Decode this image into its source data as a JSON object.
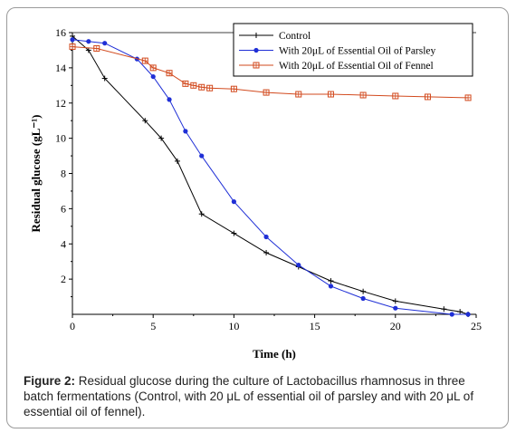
{
  "chart_data": {
    "type": "line",
    "xlabel": "Time (h)",
    "ylabel": "Residual glucose (gL⁻¹)",
    "xlim": [
      0,
      25
    ],
    "ylim": [
      0,
      16
    ],
    "xticks": [
      "0",
      "5",
      "10",
      "15",
      "20",
      "25"
    ],
    "yticks": [
      "2",
      "4",
      "6",
      "8",
      "10",
      "12",
      "14",
      "16"
    ],
    "grid": false,
    "legend_position": "top-right",
    "series": [
      {
        "name": "Control",
        "color": "#000000",
        "marker": "plus",
        "x": [
          0,
          1,
          2,
          4.5,
          5.5,
          6.5,
          8,
          10,
          12,
          14,
          16,
          18,
          20,
          23,
          24,
          24.5
        ],
        "y": [
          15.8,
          15.0,
          13.4,
          11.0,
          10.0,
          8.7,
          5.7,
          4.6,
          3.5,
          2.7,
          1.9,
          1.3,
          0.75,
          0.3,
          0.15,
          0.0
        ]
      },
      {
        "name": "With 20μL of Essential Oil of Parsley",
        "color": "#1f2fd6",
        "marker": "circle",
        "x": [
          0,
          1,
          2,
          4,
          5,
          6,
          7,
          8,
          10,
          12,
          14,
          16,
          18,
          20,
          23.5,
          24.5
        ],
        "y": [
          15.6,
          15.5,
          15.4,
          14.5,
          13.5,
          12.2,
          10.4,
          9.0,
          6.4,
          4.4,
          2.8,
          1.6,
          0.9,
          0.35,
          0.0,
          0.0
        ]
      },
      {
        "name": "With 20μL of Essential Oil of Fennel",
        "color": "#d24a1e",
        "marker": "square-cross",
        "x": [
          0,
          1.5,
          4.5,
          5,
          6,
          7,
          7.5,
          8,
          8.5,
          10,
          12,
          14,
          16,
          18,
          20,
          22,
          24.5
        ],
        "y": [
          15.2,
          15.1,
          14.4,
          14.0,
          13.7,
          13.1,
          13.0,
          12.9,
          12.85,
          12.8,
          12.6,
          12.5,
          12.5,
          12.45,
          12.4,
          12.35,
          12.3
        ]
      }
    ]
  },
  "caption": {
    "label": "Figure 2:",
    "text": " Residual glucose during the culture of Lactobacillus rhamnosus in three batch fermentations (Control, with 20 μL of essential oil of parsley and with 20 μL of essential oil of fennel)."
  }
}
